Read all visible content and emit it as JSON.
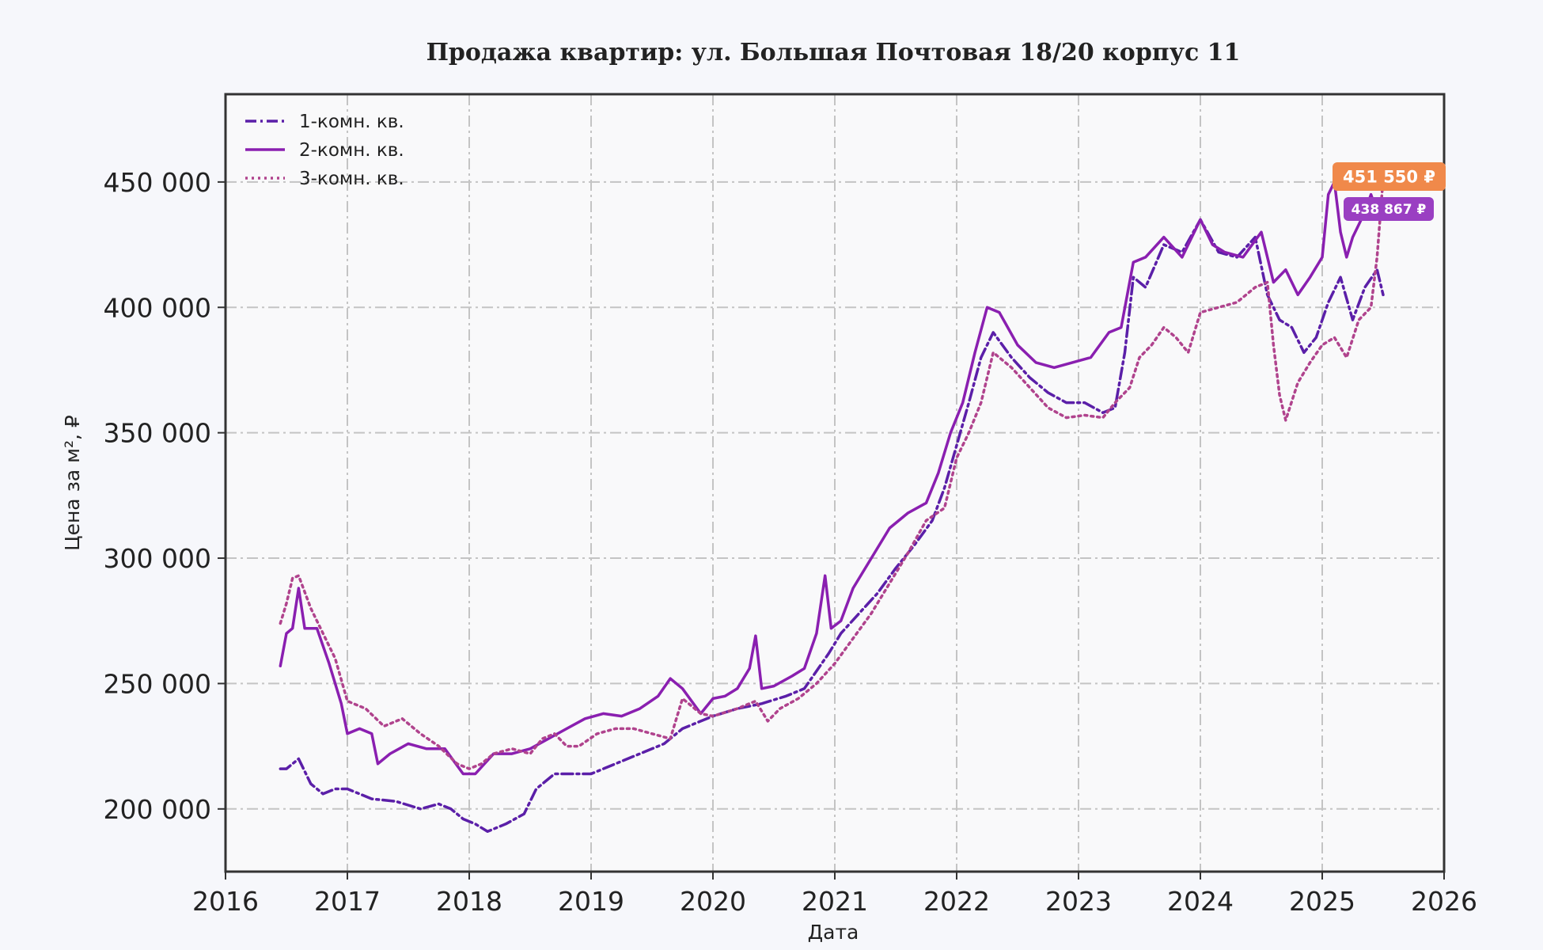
{
  "chart_data": {
    "type": "line",
    "title": "Продажа квартир: ул. Большая Почтовая 18/20 корпус 11",
    "xlabel": "Дата",
    "ylabel": "Цена за м², ₽",
    "xlim": [
      2016.0,
      2026.0
    ],
    "ylim": [
      175000,
      485000
    ],
    "x_ticks": [
      2016,
      2017,
      2018,
      2019,
      2020,
      2021,
      2022,
      2023,
      2024,
      2025,
      2026
    ],
    "x_tick_labels": [
      "2016",
      "2017",
      "2018",
      "2019",
      "2020",
      "2021",
      "2022",
      "2023",
      "2024",
      "2025",
      "2026"
    ],
    "y_ticks": [
      200000,
      250000,
      300000,
      350000,
      400000,
      450000
    ],
    "y_tick_labels": [
      "200 000",
      "250 000",
      "300 000",
      "350 000",
      "400 000",
      "450 000"
    ],
    "grid": true,
    "legend_position": "top-left",
    "series": [
      {
        "name": "1-комн. кв.",
        "color": "#5b1fa8",
        "style": "dashdot",
        "x": [
          2016.45,
          2016.5,
          2016.6,
          2016.7,
          2016.8,
          2016.9,
          2017.0,
          2017.2,
          2017.4,
          2017.6,
          2017.75,
          2017.85,
          2017.95,
          2018.05,
          2018.15,
          2018.3,
          2018.45,
          2018.55,
          2018.7,
          2018.85,
          2019.0,
          2019.2,
          2019.4,
          2019.6,
          2019.75,
          2019.9,
          2020.0,
          2020.2,
          2020.4,
          2020.6,
          2020.75,
          2020.85,
          2020.95,
          2021.05,
          2021.2,
          2021.35,
          2021.5,
          2021.65,
          2021.8,
          2021.9,
          2022.0,
          2022.1,
          2022.2,
          2022.3,
          2022.45,
          2022.6,
          2022.75,
          2022.9,
          2023.05,
          2023.2,
          2023.3,
          2023.38,
          2023.45,
          2023.55,
          2023.7,
          2023.85,
          2024.0,
          2024.15,
          2024.3,
          2024.45,
          2024.55,
          2024.65,
          2024.75,
          2024.85,
          2024.95,
          2025.05,
          2025.15,
          2025.25,
          2025.35,
          2025.45,
          2025.5
        ],
        "y": [
          216000,
          216000,
          220000,
          210000,
          206000,
          208000,
          208000,
          204000,
          203000,
          200000,
          202000,
          200000,
          196000,
          194000,
          191000,
          194000,
          198000,
          208000,
          214000,
          214000,
          214000,
          218000,
          222000,
          226000,
          232000,
          235000,
          237000,
          240000,
          242000,
          245000,
          248000,
          255000,
          262000,
          270000,
          278000,
          286000,
          296000,
          305000,
          315000,
          328000,
          345000,
          362000,
          380000,
          390000,
          380000,
          372000,
          366000,
          362000,
          362000,
          358000,
          360000,
          382000,
          412000,
          408000,
          425000,
          422000,
          435000,
          422000,
          420000,
          428000,
          405000,
          395000,
          392000,
          382000,
          388000,
          402000,
          412000,
          395000,
          408000,
          415000,
          405000
        ]
      },
      {
        "name": "2-комн. кв.",
        "color": "#8a1fb0",
        "style": "solid",
        "x": [
          2016.45,
          2016.5,
          2016.55,
          2016.6,
          2016.65,
          2016.75,
          2016.85,
          2016.95,
          2017.0,
          2017.1,
          2017.2,
          2017.25,
          2017.35,
          2017.5,
          2017.65,
          2017.8,
          2017.95,
          2018.05,
          2018.2,
          2018.35,
          2018.5,
          2018.65,
          2018.8,
          2018.95,
          2019.1,
          2019.25,
          2019.4,
          2019.55,
          2019.65,
          2019.75,
          2019.9,
          2020.0,
          2020.1,
          2020.2,
          2020.3,
          2020.35,
          2020.4,
          2020.5,
          2020.65,
          2020.75,
          2020.85,
          2020.92,
          2020.97,
          2021.05,
          2021.15,
          2021.3,
          2021.45,
          2021.6,
          2021.75,
          2021.85,
          2021.95,
          2022.05,
          2022.15,
          2022.25,
          2022.35,
          2022.5,
          2022.65,
          2022.8,
          2022.95,
          2023.1,
          2023.25,
          2023.35,
          2023.45,
          2023.55,
          2023.7,
          2023.85,
          2024.0,
          2024.1,
          2024.2,
          2024.35,
          2024.5,
          2024.6,
          2024.7,
          2024.8,
          2024.9,
          2025.0,
          2025.05,
          2025.1,
          2025.15,
          2025.2,
          2025.25,
          2025.35,
          2025.4,
          2025.45,
          2025.5
        ],
        "y": [
          257000,
          270000,
          272000,
          288000,
          272000,
          272000,
          258000,
          242000,
          230000,
          232000,
          230000,
          218000,
          222000,
          226000,
          224000,
          224000,
          214000,
          214000,
          222000,
          222000,
          224000,
          228000,
          232000,
          236000,
          238000,
          237000,
          240000,
          245000,
          252000,
          248000,
          238000,
          244000,
          245000,
          248000,
          256000,
          269000,
          248000,
          249000,
          253000,
          256000,
          270000,
          293000,
          272000,
          275000,
          288000,
          300000,
          312000,
          318000,
          322000,
          334000,
          350000,
          362000,
          382000,
          400000,
          398000,
          385000,
          378000,
          376000,
          378000,
          380000,
          390000,
          392000,
          418000,
          420000,
          428000,
          420000,
          435000,
          425000,
          422000,
          420000,
          430000,
          410000,
          415000,
          405000,
          412000,
          420000,
          445000,
          450000,
          430000,
          420000,
          428000,
          438000,
          445000,
          438000,
          438867
        ]
      },
      {
        "name": "3-комн. кв.",
        "color": "#b0438d",
        "style": "dotted",
        "x": [
          2016.45,
          2016.5,
          2016.55,
          2016.6,
          2016.7,
          2016.8,
          2016.9,
          2017.0,
          2017.15,
          2017.3,
          2017.45,
          2017.6,
          2017.75,
          2017.9,
          2018.0,
          2018.1,
          2018.2,
          2018.35,
          2018.5,
          2018.6,
          2018.7,
          2018.8,
          2018.9,
          2019.05,
          2019.2,
          2019.35,
          2019.5,
          2019.65,
          2019.75,
          2019.9,
          2020.0,
          2020.2,
          2020.35,
          2020.45,
          2020.55,
          2020.7,
          2020.85,
          2021.0,
          2021.15,
          2021.3,
          2021.45,
          2021.6,
          2021.75,
          2021.9,
          2022.0,
          2022.1,
          2022.2,
          2022.3,
          2022.45,
          2022.6,
          2022.75,
          2022.9,
          2023.05,
          2023.2,
          2023.3,
          2023.42,
          2023.5,
          2023.6,
          2023.7,
          2023.8,
          2023.9,
          2024.0,
          2024.15,
          2024.3,
          2024.45,
          2024.55,
          2024.6,
          2024.65,
          2024.7,
          2024.8,
          2024.9,
          2025.0,
          2025.1,
          2025.2,
          2025.3,
          2025.4,
          2025.45,
          2025.5
        ],
        "y": [
          274000,
          282000,
          292000,
          293000,
          280000,
          270000,
          260000,
          243000,
          240000,
          233000,
          236000,
          230000,
          225000,
          218000,
          216000,
          218000,
          222000,
          224000,
          222000,
          228000,
          230000,
          225000,
          225000,
          230000,
          232000,
          232000,
          230000,
          228000,
          244000,
          238000,
          237000,
          240000,
          243000,
          235000,
          240000,
          244000,
          250000,
          258000,
          268000,
          278000,
          290000,
          302000,
          315000,
          320000,
          340000,
          350000,
          362000,
          382000,
          376000,
          368000,
          360000,
          356000,
          357000,
          356000,
          362000,
          368000,
          380000,
          385000,
          392000,
          388000,
          382000,
          398000,
          400000,
          402000,
          408000,
          410000,
          385000,
          365000,
          355000,
          370000,
          378000,
          385000,
          388000,
          380000,
          395000,
          400000,
          420000,
          451550
        ]
      }
    ],
    "end_labels": [
      {
        "text": "451 550 ₽",
        "value": 451550,
        "color": "#f0894a"
      },
      {
        "text": "438 867 ₽",
        "value": 438867,
        "color": "#9a3fc2"
      }
    ]
  }
}
